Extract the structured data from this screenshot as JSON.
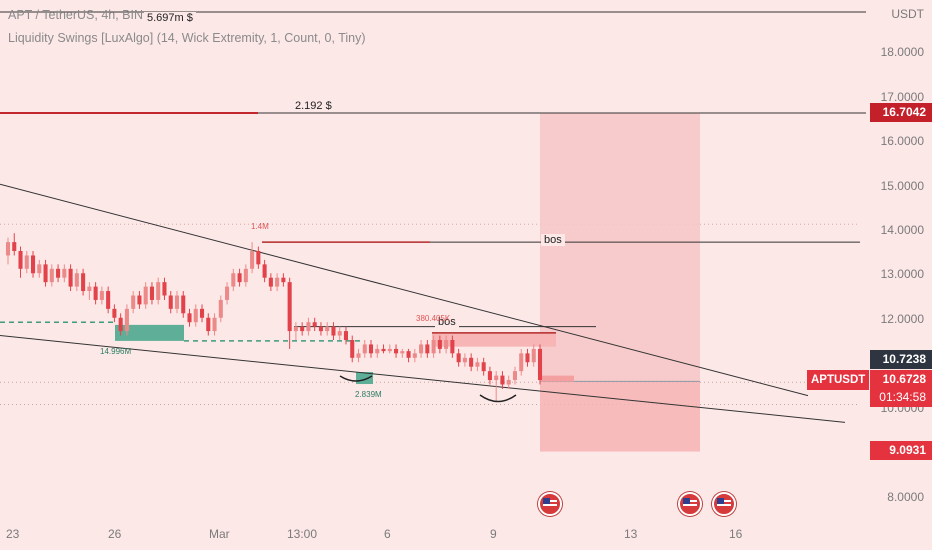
{
  "header": {
    "symbol_line": "APT / TetherUS, 4h, BIN",
    "indicator_line": "Liquidity Swings [LuxAlgo] (14, Wick Extremity, 1, Count, 0, Tiny)",
    "currency": "USDT"
  },
  "price_axis": {
    "ticks": [
      "18.0000",
      "17.0000",
      "16.0000",
      "15.0000",
      "14.0000",
      "13.0000",
      "12.0000",
      "11.0000",
      "10.0000",
      "9.0000",
      "8.0000"
    ]
  },
  "time_axis": {
    "ticks": [
      "23",
      "26",
      "Mar",
      "13:00",
      "6",
      "9",
      "13",
      "16"
    ]
  },
  "levels": {
    "top_line_label": "5.697m $",
    "mid_line_label": "2.192 $",
    "bos_upper": "bos",
    "bos_lower": "bos"
  },
  "volume_labels": {
    "high_top": "1.4M",
    "high_mid": "380.405K",
    "low_left": "14.996M",
    "low_mid": "2.839M"
  },
  "price_tags": {
    "target": "16.7042",
    "stop_ref": "10.7238",
    "symbol": "APTUSDT",
    "current": "10.6728",
    "countdown": "01:34:58",
    "lower": "9.0931"
  },
  "colors": {
    "background": "#fde8e8",
    "up_candle": "#ec8a8a",
    "down_candle": "#e2434b",
    "target_zone": "#f6c6c6",
    "stop_zone": "#f6b3b3",
    "liquidity_low": "#5fae98",
    "liquidity_high": "#f7b5b5",
    "tag_red": "#c4202a",
    "tag_dark": "#2f3540"
  },
  "events": [
    "us-flag-icon",
    "us-flag-icon",
    "us-flag-icon"
  ],
  "chart_data": {
    "type": "candlestick",
    "title": "APT / TetherUS, 4h, BIN",
    "y_unit": "USDT",
    "ylim": [
      7.6,
      19.0
    ],
    "x_ticks": [
      "23",
      "26",
      "Mar",
      "13:00",
      "6",
      "9",
      "13",
      "16"
    ],
    "candles": [
      [
        13.5,
        13.8,
        13.9,
        13.3
      ],
      [
        13.8,
        13.6,
        14.0,
        13.5
      ],
      [
        13.6,
        13.2,
        13.7,
        13.0
      ],
      [
        13.2,
        13.5,
        13.6,
        13.1
      ],
      [
        13.5,
        13.1,
        13.6,
        13.0
      ],
      [
        13.1,
        13.3,
        13.4,
        13.0
      ],
      [
        13.3,
        12.9,
        13.4,
        12.8
      ],
      [
        12.9,
        13.2,
        13.3,
        12.8
      ],
      [
        13.2,
        13.0,
        13.3,
        12.9
      ],
      [
        13.0,
        13.2,
        13.3,
        12.9
      ],
      [
        13.2,
        12.8,
        13.3,
        12.7
      ],
      [
        12.8,
        13.1,
        13.2,
        12.7
      ],
      [
        13.1,
        12.7,
        13.2,
        12.6
      ],
      [
        12.7,
        12.8,
        12.9,
        12.5
      ],
      [
        12.8,
        12.5,
        12.9,
        12.4
      ],
      [
        12.5,
        12.7,
        12.8,
        12.4
      ],
      [
        12.7,
        12.3,
        12.8,
        12.2
      ],
      [
        12.3,
        12.1,
        12.4,
        12.0
      ],
      [
        12.1,
        11.8,
        12.2,
        11.7
      ],
      [
        11.8,
        12.3,
        12.4,
        11.7
      ],
      [
        12.3,
        12.6,
        12.7,
        12.2
      ],
      [
        12.6,
        12.4,
        12.7,
        12.3
      ],
      [
        12.4,
        12.8,
        12.9,
        12.3
      ],
      [
        12.8,
        12.5,
        12.9,
        12.4
      ],
      [
        12.5,
        12.9,
        13.0,
        12.4
      ],
      [
        12.9,
        12.6,
        13.0,
        12.5
      ],
      [
        12.6,
        12.3,
        12.7,
        12.2
      ],
      [
        12.3,
        12.6,
        12.7,
        12.2
      ],
      [
        12.6,
        12.2,
        12.7,
        12.1
      ],
      [
        12.2,
        12.0,
        12.3,
        11.9
      ],
      [
        12.0,
        12.3,
        12.4,
        11.9
      ],
      [
        12.3,
        12.1,
        12.4,
        12.0
      ],
      [
        12.1,
        11.8,
        12.2,
        11.7
      ],
      [
        11.8,
        12.1,
        12.2,
        11.7
      ],
      [
        12.1,
        12.5,
        12.6,
        12.0
      ],
      [
        12.5,
        12.8,
        12.9,
        12.4
      ],
      [
        12.8,
        13.1,
        13.2,
        12.7
      ],
      [
        13.1,
        12.9,
        13.2,
        12.8
      ],
      [
        12.9,
        13.2,
        13.3,
        12.8
      ],
      [
        13.2,
        13.6,
        13.8,
        13.1
      ],
      [
        13.6,
        13.3,
        13.7,
        13.2
      ],
      [
        13.3,
        13.0,
        13.4,
        12.9
      ],
      [
        13.0,
        12.8,
        13.1,
        12.7
      ],
      [
        12.8,
        13.0,
        13.1,
        12.7
      ],
      [
        13.0,
        12.9,
        13.1,
        12.8
      ],
      [
        12.9,
        11.8,
        13.0,
        11.4
      ],
      [
        11.8,
        11.9,
        12.0,
        11.6
      ],
      [
        11.9,
        11.8,
        12.0,
        11.7
      ],
      [
        11.8,
        12.0,
        12.1,
        11.7
      ],
      [
        12.0,
        11.9,
        12.1,
        11.8
      ],
      [
        11.9,
        11.8,
        12.0,
        11.7
      ],
      [
        11.8,
        11.9,
        12.0,
        11.7
      ],
      [
        11.9,
        11.7,
        12.0,
        11.6
      ],
      [
        11.7,
        11.8,
        11.9,
        11.6
      ],
      [
        11.8,
        11.6,
        11.9,
        11.5
      ],
      [
        11.6,
        11.2,
        11.7,
        11.1
      ],
      [
        11.2,
        11.3,
        11.4,
        11.1
      ],
      [
        11.3,
        11.5,
        11.6,
        11.2
      ],
      [
        11.5,
        11.3,
        11.6,
        11.2
      ],
      [
        11.3,
        11.4,
        11.5,
        11.2
      ],
      [
        11.4,
        11.35,
        11.5,
        11.3
      ],
      [
        11.35,
        11.4,
        11.5,
        11.3
      ],
      [
        11.4,
        11.3,
        11.5,
        11.2
      ],
      [
        11.3,
        11.35,
        11.4,
        11.2
      ],
      [
        11.35,
        11.2,
        11.4,
        11.1
      ],
      [
        11.2,
        11.3,
        11.4,
        11.1
      ],
      [
        11.3,
        11.5,
        11.6,
        11.2
      ],
      [
        11.5,
        11.3,
        11.6,
        11.2
      ],
      [
        11.3,
        11.6,
        11.7,
        11.2
      ],
      [
        11.6,
        11.4,
        11.7,
        11.3
      ],
      [
        11.4,
        11.6,
        11.7,
        11.3
      ],
      [
        11.6,
        11.3,
        11.7,
        11.2
      ],
      [
        11.3,
        11.1,
        11.4,
        11.0
      ],
      [
        11.1,
        11.2,
        11.3,
        11.0
      ],
      [
        11.2,
        11.0,
        11.3,
        10.9
      ],
      [
        11.0,
        11.1,
        11.2,
        10.9
      ],
      [
        11.1,
        10.9,
        11.2,
        10.8
      ],
      [
        10.9,
        10.7,
        11.0,
        10.6
      ],
      [
        10.7,
        10.8,
        10.9,
        10.2
      ],
      [
        10.8,
        10.6,
        10.9,
        10.5
      ],
      [
        10.6,
        10.7,
        10.8,
        10.5
      ],
      [
        10.7,
        10.9,
        11.0,
        10.6
      ],
      [
        10.9,
        11.3,
        11.4,
        10.8
      ],
      [
        11.3,
        11.1,
        11.4,
        11.0
      ],
      [
        11.1,
        11.4,
        11.5,
        11.0
      ],
      [
        11.4,
        10.7,
        11.5,
        10.6
      ]
    ],
    "levels": [
      {
        "label": "5.697m $",
        "price": 18.97
      },
      {
        "label": "2.192 $",
        "price": 16.7
      },
      {
        "label": "bos",
        "price": 13.8
      },
      {
        "label": "bos",
        "price": 11.9
      }
    ],
    "position": {
      "entry": 10.67,
      "target": 16.7042,
      "stop": 9.0931
    },
    "last_price": 10.6728
  }
}
